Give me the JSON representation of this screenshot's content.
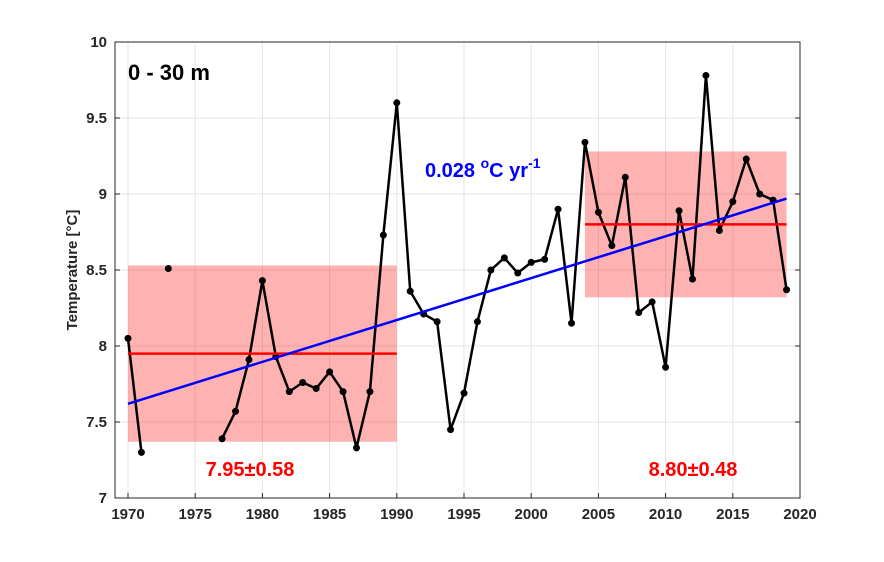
{
  "chart_data": {
    "type": "line",
    "panel_label": "0 - 30 m",
    "ylabel": "Temperature [°C]",
    "ylabel_parts": {
      "pre": "Temperature [",
      "sup": "o",
      "post": "C]"
    },
    "xlabel": "",
    "xlim": [
      1969,
      2020
    ],
    "ylim": [
      7,
      10
    ],
    "xticks": [
      1970,
      1975,
      1980,
      1985,
      1990,
      1995,
      2000,
      2005,
      2010,
      2015,
      2020
    ],
    "yticks": [
      "7",
      "7.5",
      "8",
      "8.5",
      "9",
      "9.5",
      "10"
    ],
    "grid": true,
    "series": [
      {
        "color": "#000000",
        "x": [
          1970,
          1971,
          1973,
          1977,
          1978,
          1979,
          1980,
          1981,
          1982,
          1983,
          1984,
          1985,
          1986,
          1987,
          1988,
          1989,
          1990,
          1991,
          1992,
          1993,
          1994,
          1995,
          1996,
          1997,
          1998,
          1999,
          2000,
          2001,
          2002,
          2003,
          2004,
          2005,
          2006,
          2007,
          2008,
          2009,
          2010,
          2011,
          2012,
          2013,
          2014,
          2015,
          2016,
          2017,
          2018,
          2019
        ],
        "y": [
          8.05,
          7.3,
          8.51,
          7.39,
          7.57,
          7.91,
          8.43,
          7.93,
          7.7,
          7.76,
          7.72,
          7.83,
          7.7,
          7.33,
          7.7,
          8.73,
          9.6,
          8.36,
          8.21,
          8.16,
          7.45,
          7.69,
          8.16,
          8.5,
          8.58,
          8.48,
          8.55,
          8.57,
          8.9,
          8.15,
          9.34,
          8.88,
          8.66,
          9.11,
          8.22,
          8.29,
          7.86,
          8.89,
          8.44,
          9.78,
          8.76,
          8.95,
          9.23,
          9.0,
          8.96,
          8.37
        ]
      }
    ],
    "trend": {
      "color": "#0000ff",
      "x": [
        1970,
        2019
      ],
      "y": [
        7.62,
        8.97
      ],
      "label_main": "0.028 ",
      "label_sup1": "o",
      "label_mid": "C yr",
      "label_sup2": "-1"
    },
    "periods": [
      {
        "x": [
          1970,
          1990
        ],
        "mean": 7.95,
        "std": 0.58,
        "label": "7.95±0.58",
        "line_color": "#ff0000",
        "fill_color": "#ff0000"
      },
      {
        "x": [
          2004,
          2019
        ],
        "mean": 8.8,
        "std": 0.48,
        "label": "8.80±0.48",
        "line_color": "#ff0000",
        "fill_color": "#ff0000"
      }
    ]
  }
}
